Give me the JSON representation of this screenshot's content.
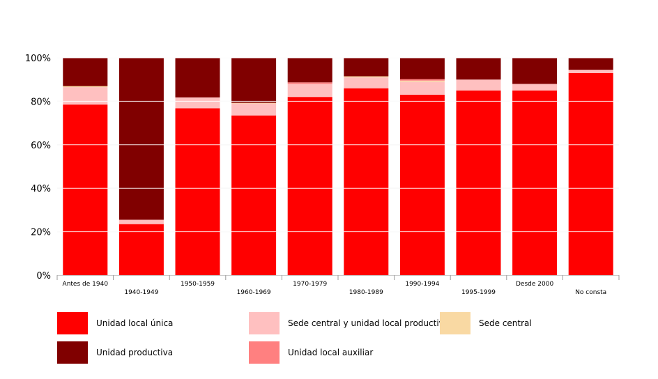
{
  "chart_data": {
    "type": "bar",
    "stacked": true,
    "categories": [
      "Antes de 1940",
      "1940-1949",
      "1950-1959",
      "1960-1969",
      "1970-1979",
      "1980-1989",
      "1990-1994",
      "1995-1999",
      "Desde 2000",
      "No consta"
    ],
    "series": [
      {
        "name": "Unidad local única",
        "color": "#ff0000",
        "values": [
          78.5,
          23.5,
          76.8,
          73.5,
          82.0,
          86.0,
          83.0,
          85.0,
          85.0,
          93.0
        ]
      },
      {
        "name": "Sede central y unidad local productiva",
        "color": "#ffc0c0",
        "values": [
          8.0,
          2.0,
          5.0,
          5.5,
          6.0,
          5.0,
          6.0,
          5.0,
          3.0,
          1.5
        ]
      },
      {
        "name": "Sede central",
        "color": "#f9d9a3",
        "values": [
          0.5,
          0.0,
          0.0,
          0.3,
          0.0,
          0.5,
          0.5,
          0.0,
          0.0,
          0.0
        ]
      },
      {
        "name": "Unidad local auxiliar",
        "color": "#ff8080",
        "values": [
          0.0,
          0.0,
          0.0,
          0.0,
          0.7,
          0.0,
          0.7,
          0.0,
          0.0,
          0.0
        ]
      },
      {
        "name": "Unidad productiva",
        "color": "#800000",
        "values": [
          13.0,
          74.5,
          18.2,
          20.7,
          11.3,
          8.5,
          9.8,
          10.0,
          12.0,
          5.5
        ]
      }
    ],
    "yticks": [
      "0%",
      "20%",
      "40%",
      "60%",
      "80%",
      "100%"
    ],
    "ylim": [
      0,
      100
    ],
    "grid": true,
    "legend_position": "bottom",
    "title": "",
    "xlabel": "",
    "ylabel": ""
  },
  "legend": [
    {
      "label": "Unidad local única",
      "color": "#ff0000"
    },
    {
      "label": "Sede central y unidad local productiva",
      "color": "#ffc0c0"
    },
    {
      "label": "Sede central",
      "color": "#f9d9a3"
    },
    {
      "label": "Unidad productiva",
      "color": "#800000"
    },
    {
      "label": "Unidad local auxiliar",
      "color": "#ff8080"
    }
  ]
}
